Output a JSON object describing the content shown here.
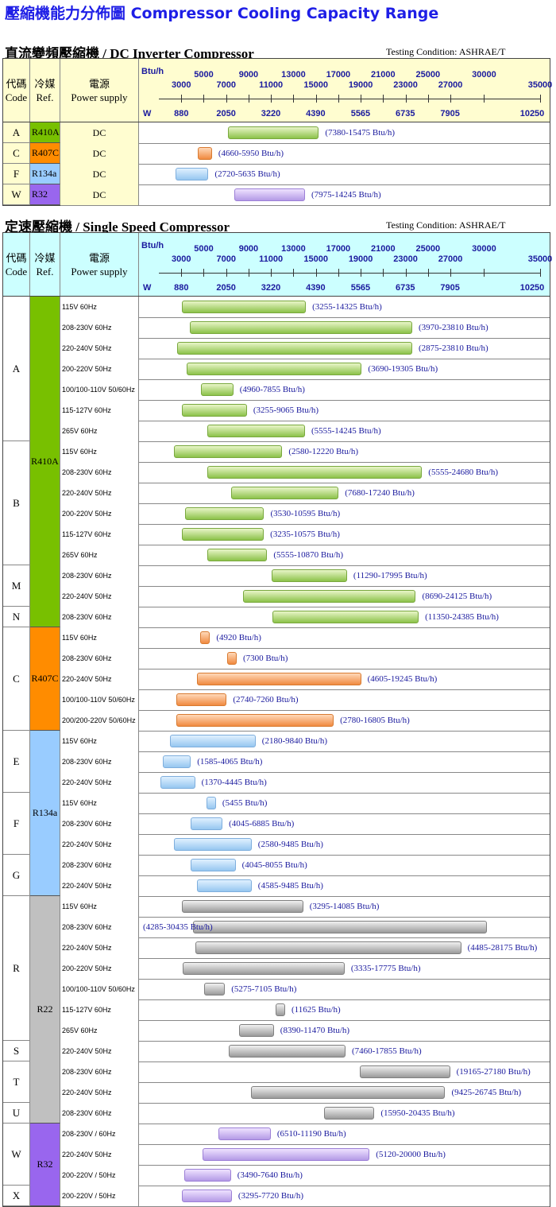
{
  "page_title": "壓縮機能力分佈圖 Compressor Cooling Capacity Range",
  "colors": {
    "title": "#1e1ee6",
    "R410A": "#78c000",
    "R407C": "#ff8c00",
    "R134a": "#99ccff",
    "R22": "#c0c0c0",
    "R32": "#9966ee",
    "dc_header": "#fffdd0",
    "ss_header": "#ccffff"
  },
  "axis": {
    "btuh_label": "Btu/h",
    "w_label": "W",
    "btuh_ticks_upper": [
      "5000",
      "9000",
      "13000",
      "17000",
      "21000",
      "25000",
      "30000"
    ],
    "btuh_ticks_lower": [
      "3000",
      "7000",
      "11000",
      "15000",
      "19000",
      "23000",
      "27000",
      "35000"
    ],
    "w_ticks": [
      "880",
      "2050",
      "3220",
      "4390",
      "5565",
      "6735",
      "7905",
      "10250"
    ]
  },
  "header_labels": {
    "code_zh": "代碼",
    "code_en": "Code",
    "ref_zh": "冷媒",
    "ref_en": "Ref.",
    "power_zh": "電源",
    "power_en": "Power supply"
  },
  "dc_section": {
    "title": "直流變頻壓縮機 / DC Inverter Compressor",
    "testing": "Testing Condition: ASHRAE/T"
  },
  "ss_section": {
    "title": "定速壓縮機 / Single Speed Compressor",
    "testing": "Testing Condition: ASHRAE/T"
  },
  "chart_data": [
    {
      "type": "range-bar",
      "title": "直流變頻壓縮機 / DC Inverter Compressor",
      "unit": "Btu/h",
      "rows": [
        {
          "code": "A",
          "ref": "R410A",
          "power": "DC",
          "min": 7380,
          "max": 15475,
          "label": "(7380-15475 Btu/h)"
        },
        {
          "code": "C",
          "ref": "R407C",
          "power": "DC",
          "min": 4660,
          "max": 5950,
          "label": "(4660-5950 Btu/h)"
        },
        {
          "code": "F",
          "ref": "R134a",
          "power": "DC",
          "min": 2720,
          "max": 5635,
          "label": "(2720-5635 Btu/h)"
        },
        {
          "code": "W",
          "ref": "R32",
          "power": "DC",
          "min": 7975,
          "max": 14245,
          "label": "(7975-14245 Btu/h)"
        }
      ]
    },
    {
      "type": "range-bar",
      "title": "定速壓縮機 / Single Speed Compressor",
      "unit": "Btu/h",
      "rows": [
        {
          "code": "A",
          "ref": "R410A",
          "power": "115V  60Hz",
          "min": 3255,
          "max": 14325,
          "label": "(3255-14325 Btu/h)"
        },
        {
          "code": "A",
          "ref": "R410A",
          "power": "208-230V  60Hz",
          "min": 3970,
          "max": 23810,
          "label": "(3970-23810 Btu/h)"
        },
        {
          "code": "A",
          "ref": "R410A",
          "power": "220-240V  50Hz",
          "min": 2875,
          "max": 23810,
          "label": "(2875-23810 Btu/h)"
        },
        {
          "code": "A",
          "ref": "R410A",
          "power": "200-220V  50Hz",
          "min": 3690,
          "max": 19305,
          "label": "(3690-19305 Btu/h)"
        },
        {
          "code": "A",
          "ref": "R410A",
          "power": "100/100-110V  50/60Hz",
          "min": 4960,
          "max": 7855,
          "label": "(4960-7855 Btu/h)"
        },
        {
          "code": "A",
          "ref": "R410A",
          "power": "115-127V  60Hz",
          "min": 3255,
          "max": 9065,
          "label": "(3255-9065 Btu/h)"
        },
        {
          "code": "A",
          "ref": "R410A",
          "power": "265V  60Hz",
          "min": 5555,
          "max": 14245,
          "label": "(5555-14245 Btu/h)"
        },
        {
          "code": "B",
          "ref": "R410A",
          "power": "115V  60Hz",
          "min": 2580,
          "max": 12220,
          "label": "(2580-12220 Btu/h)"
        },
        {
          "code": "B",
          "ref": "R410A",
          "power": "208-230V  60Hz",
          "min": 5555,
          "max": 24680,
          "label": "(5555-24680 Btu/h)"
        },
        {
          "code": "B",
          "ref": "R410A",
          "power": "220-240V  50Hz",
          "min": 7680,
          "max": 17240,
          "label": "(7680-17240 Btu/h)"
        },
        {
          "code": "B",
          "ref": "R410A",
          "power": "200-220V  50Hz",
          "min": 3530,
          "max": 10595,
          "label": "(3530-10595 Btu/h)"
        },
        {
          "code": "B",
          "ref": "R410A",
          "power": "115-127V  60Hz",
          "min": 3235,
          "max": 10575,
          "label": "(3235-10575 Btu/h)"
        },
        {
          "code": "B",
          "ref": "R410A",
          "power": "265V  60Hz",
          "min": 5555,
          "max": 10870,
          "label": "(5555-10870 Btu/h)"
        },
        {
          "code": "M",
          "ref": "R410A",
          "power": "208-230V  60Hz",
          "min": 11290,
          "max": 17995,
          "label": "(11290-17995 Btu/h)"
        },
        {
          "code": "M",
          "ref": "R410A",
          "power": "220-240V  50Hz",
          "min": 8690,
          "max": 24125,
          "label": "(8690-24125 Btu/h)"
        },
        {
          "code": "N",
          "ref": "R410A",
          "power": "208-230V  60Hz",
          "min": 11350,
          "max": 24385,
          "label": "(11350-24385 Btu/h)"
        },
        {
          "code": "C",
          "ref": "R407C",
          "power": "115V  60Hz",
          "min": 4920,
          "max": 4920,
          "label": "(4920 Btu/h)"
        },
        {
          "code": "C",
          "ref": "R407C",
          "power": "208-230V  60Hz",
          "min": 7300,
          "max": 7300,
          "label": "(7300 Btu/h)"
        },
        {
          "code": "C",
          "ref": "R407C",
          "power": "220-240V  50Hz",
          "min": 4605,
          "max": 19245,
          "label": "(4605-19245 Btu/h)"
        },
        {
          "code": "C",
          "ref": "R407C",
          "power": "100/100-110V  50/60Hz",
          "min": 2740,
          "max": 7260,
          "label": "(2740-7260 Btu/h)"
        },
        {
          "code": "C",
          "ref": "R407C",
          "power": "200/200-220V  50/60Hz",
          "min": 2780,
          "max": 16805,
          "label": "(2780-16805 Btu/h)"
        },
        {
          "code": "E",
          "ref": "R134a",
          "power": "115V  60Hz",
          "min": 2180,
          "max": 9840,
          "label": "(2180-9840 Btu/h)"
        },
        {
          "code": "E",
          "ref": "R134a",
          "power": "208-230V  60Hz",
          "min": 1585,
          "max": 4065,
          "label": "(1585-4065 Btu/h)"
        },
        {
          "code": "E",
          "ref": "R134a",
          "power": "220-240V  50Hz",
          "min": 1370,
          "max": 4445,
          "label": "(1370-4445 Btu/h)"
        },
        {
          "code": "F",
          "ref": "R134a",
          "power": "115V  60Hz",
          "min": 5455,
          "max": 5455,
          "label": "(5455 Btu/h)"
        },
        {
          "code": "F",
          "ref": "R134a",
          "power": "208-230V  60Hz",
          "min": 4045,
          "max": 6885,
          "label": "(4045-6885 Btu/h)"
        },
        {
          "code": "F",
          "ref": "R134a",
          "power": "220-240V  50Hz",
          "min": 2580,
          "max": 9485,
          "label": "(2580-9485 Btu/h)"
        },
        {
          "code": "G",
          "ref": "R134a",
          "power": "208-230V  60Hz",
          "min": 4045,
          "max": 8055,
          "label": "(4045-8055 Btu/h)"
        },
        {
          "code": "G",
          "ref": "R134a",
          "power": "220-240V  50Hz",
          "min": 4585,
          "max": 9485,
          "label": "(4585-9485 Btu/h)"
        },
        {
          "code": "R",
          "ref": "R22",
          "power": "115V  60Hz",
          "min": 3295,
          "max": 14085,
          "label": "(3295-14085 Btu/h)"
        },
        {
          "code": "R",
          "ref": "R22",
          "power": "208-230V  60Hz",
          "min": 4285,
          "max": 30435,
          "label": "(4285-30435   Btu/h)"
        },
        {
          "code": "R",
          "ref": "R22",
          "power": "220-240V  50Hz",
          "min": 4485,
          "max": 28175,
          "label": "(4485-28175 Btu/h)"
        },
        {
          "code": "R",
          "ref": "R22",
          "power": "200-220V  50Hz",
          "min": 3335,
          "max": 17775,
          "label": "(3335-17775 Btu/h)"
        },
        {
          "code": "R",
          "ref": "R22",
          "power": "100/100-110V  50/60Hz",
          "min": 5275,
          "max": 7105,
          "label": "(5275-7105 Btu/h)"
        },
        {
          "code": "R",
          "ref": "R22",
          "power": "115-127V  60Hz",
          "min": 11625,
          "max": 11625,
          "label": "(11625 Btu/h)"
        },
        {
          "code": "R",
          "ref": "R22",
          "power": "265V  60Hz",
          "min": 8390,
          "max": 11470,
          "label": "(8390-11470 Btu/h)"
        },
        {
          "code": "S",
          "ref": "R22",
          "power": "220-240V  50Hz",
          "min": 7460,
          "max": 17855,
          "label": "(7460-17855 Btu/h)"
        },
        {
          "code": "T",
          "ref": "R22",
          "power": "208-230V  60Hz",
          "min": 19165,
          "max": 27180,
          "label": "(19165-27180 Btu/h)"
        },
        {
          "code": "T",
          "ref": "R22",
          "power": "220-240V  50Hz",
          "min": 9425,
          "max": 26745,
          "label": "(9425-26745 Btu/h)"
        },
        {
          "code": "U",
          "ref": "R22",
          "power": "208-230V  60Hz",
          "min": 15950,
          "max": 20435,
          "label": "(15950-20435 Btu/h)"
        },
        {
          "code": "W",
          "ref": "R32",
          "power": "208-230V / 60Hz",
          "min": 6510,
          "max": 11190,
          "label": "(6510-11190 Btu/h)"
        },
        {
          "code": "W",
          "ref": "R32",
          "power": "220-240V  50Hz",
          "min": 5120,
          "max": 20000,
          "label": "(5120-20000 Btu/h)"
        },
        {
          "code": "W",
          "ref": "R32",
          "power": "200-220V / 50Hz",
          "min": 3490,
          "max": 7640,
          "label": "(3490-7640 Btu/h)"
        },
        {
          "code": "X",
          "ref": "R32",
          "power": "200-220V / 50Hz",
          "min": 3295,
          "max": 7720,
          "label": "(3295-7720 Btu/h)"
        }
      ]
    }
  ]
}
